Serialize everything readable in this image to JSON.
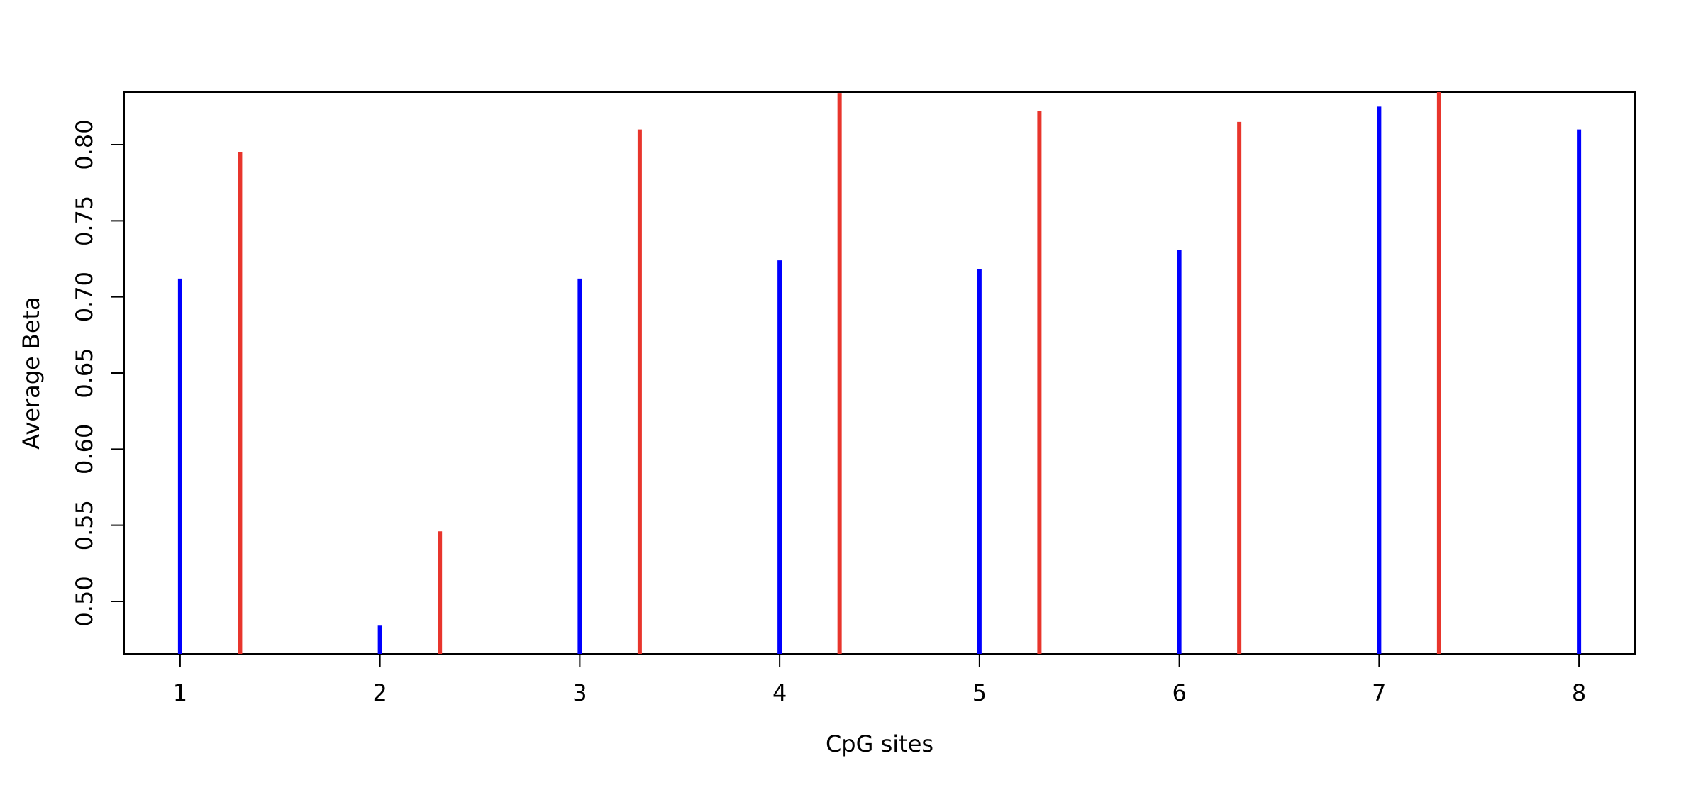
{
  "chart_data": {
    "type": "bar",
    "title": "",
    "xlabel": "CpG sites",
    "ylabel": "Average Beta",
    "x_ticks": [
      "1",
      "2",
      "3",
      "4",
      "5",
      "6",
      "7",
      "8"
    ],
    "y_ticks": [
      "0.50",
      "0.55",
      "0.60",
      "0.65",
      "0.70",
      "0.75",
      "0.80"
    ],
    "xlim": [
      0.72,
      8.28
    ],
    "ylim": [
      0.4655,
      0.8345
    ],
    "grid": false,
    "legend": "none",
    "series": [
      {
        "color": "#0000ff",
        "x": [
          1,
          2,
          3,
          4,
          5,
          6,
          7,
          8
        ],
        "values": [
          0.712,
          0.484,
          0.712,
          0.724,
          0.718,
          0.731,
          0.825,
          0.81
        ]
      },
      {
        "color": "#e8352c",
        "x": [
          1.3,
          2.3,
          3.3,
          4.3,
          5.3,
          6.3,
          7.3
        ],
        "values": [
          0.795,
          0.546,
          0.81,
          0.834,
          0.822,
          0.815,
          0.836
        ]
      }
    ]
  }
}
